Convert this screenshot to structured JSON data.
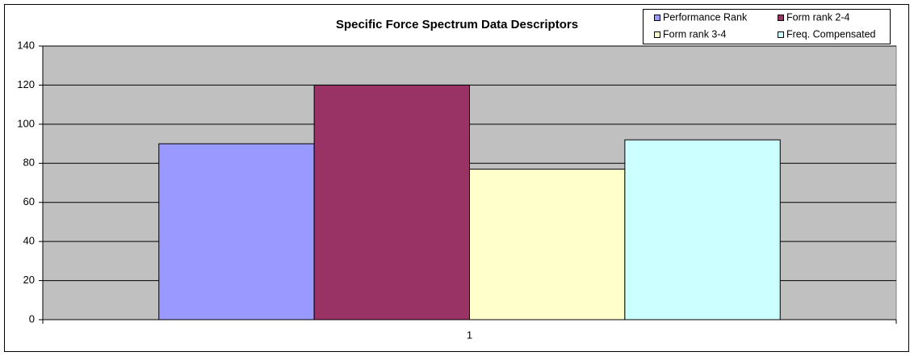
{
  "chart_data": {
    "type": "bar",
    "title": "Specific Force Spectrum Data Descriptors",
    "categories": [
      "1"
    ],
    "series": [
      {
        "name": "Performance Rank",
        "color": "#9999ff",
        "values": [
          90
        ]
      },
      {
        "name": "Form rank 2-4",
        "color": "#993366",
        "values": [
          120
        ]
      },
      {
        "name": "Form rank 3-4",
        "color": "#ffffcc",
        "values": [
          77
        ]
      },
      {
        "name": "Freq. Compensated",
        "color": "#ccffff",
        "values": [
          92
        ]
      }
    ],
    "ylim": [
      0,
      140
    ],
    "yticks": [
      0,
      20,
      40,
      60,
      80,
      100,
      120,
      140
    ],
    "grid": true,
    "legend_position": "top-right",
    "plot_background": "#c0c0c0"
  }
}
